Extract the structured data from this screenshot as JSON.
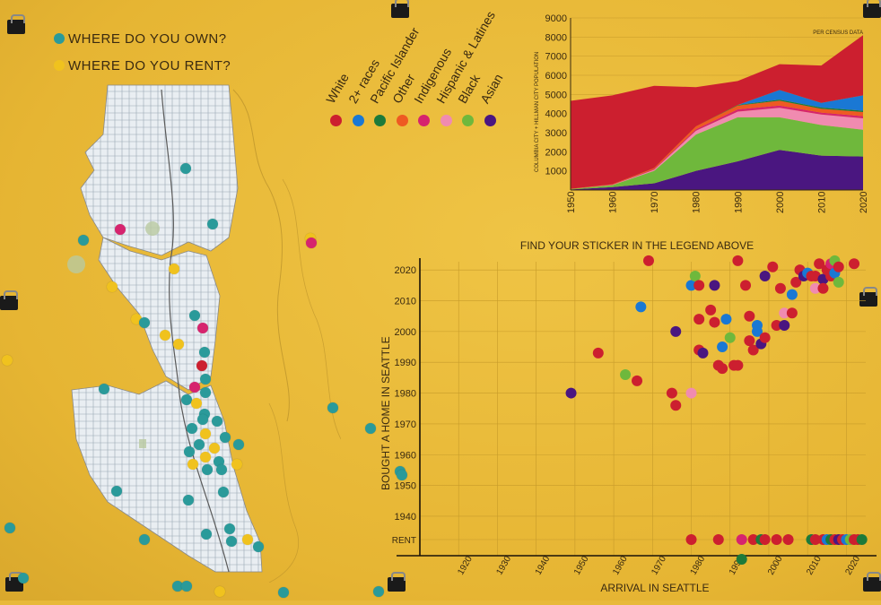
{
  "legend_key": {
    "own_label": "WHERE DO YOU OWN?",
    "rent_label": "WHERE DO YOU RENT?",
    "own_color": "#2a9a9a",
    "rent_color": "#f0c21e"
  },
  "ethnicity_legend": [
    {
      "label": "White",
      "color": "#cc1f2f"
    },
    {
      "label": "2+ races",
      "color": "#1a78d4"
    },
    {
      "label": "Pacific Islander",
      "color": "#1d7a3a"
    },
    {
      "label": "Other",
      "color": "#ee5a22"
    },
    {
      "label": "Indigenous",
      "color": "#d6246e"
    },
    {
      "label": "Hispanic & Latines",
      "color": "#f08bb0"
    },
    {
      "label": "Black",
      "color": "#6fb83c"
    },
    {
      "label": "Asian",
      "color": "#4a1680"
    }
  ],
  "area_chart": {
    "ylabel": "COLUMBIA CITY + HILLMAN CITY POPULATION",
    "note": "PER CENSUS DATA",
    "y_ticks": [
      "1000",
      "2000",
      "3000",
      "4000",
      "5000",
      "6000",
      "7000",
      "8000",
      "9000"
    ],
    "x_ticks": [
      "1950",
      "1960",
      "1970",
      "1980",
      "1990",
      "2000",
      "2010",
      "2020"
    ]
  },
  "chart_data": [
    {
      "type": "area",
      "title": "",
      "ylabel": "COLUMBIA CITY + HILLMAN CITY POPULATION",
      "xlabel": "",
      "annotation": "PER CENSUS DATA",
      "ylim": [
        0,
        9000
      ],
      "x": [
        1950,
        1960,
        1970,
        1980,
        1990,
        2000,
        2010,
        2020
      ],
      "series": [
        {
          "name": "Asian",
          "color": "#4a1680",
          "values": [
            30,
            150,
            350,
            1000,
            1500,
            2100,
            1800,
            1750
          ]
        },
        {
          "name": "Black",
          "color": "#6fb83c",
          "values": [
            20,
            100,
            650,
            1900,
            2300,
            1700,
            1600,
            1400
          ]
        },
        {
          "name": "Hispanic & Latines",
          "color": "#f08bb0",
          "values": [
            5,
            20,
            60,
            200,
            300,
            500,
            550,
            600
          ]
        },
        {
          "name": "Indigenous",
          "color": "#d6246e",
          "values": [
            5,
            15,
            40,
            80,
            120,
            120,
            100,
            110
          ]
        },
        {
          "name": "Other",
          "color": "#ee5a22",
          "values": [
            5,
            15,
            50,
            150,
            200,
            250,
            200,
            220
          ]
        },
        {
          "name": "Pacific Islander",
          "color": "#1d7a3a",
          "values": [
            0,
            0,
            0,
            0,
            30,
            60,
            60,
            70
          ]
        },
        {
          "name": "2+ races",
          "color": "#1a78d4",
          "values": [
            0,
            0,
            0,
            0,
            0,
            500,
            250,
            800
          ]
        },
        {
          "name": "White",
          "color": "#cc1f2f",
          "values": [
            4600,
            4650,
            4300,
            2050,
            1250,
            1350,
            1950,
            3150
          ]
        }
      ]
    },
    {
      "type": "scatter",
      "title": "FIND YOUR STICKER IN THE LEGEND ABOVE",
      "xlabel": "ARRIVAL IN SEATTLE",
      "ylabel": "BOUGHT A HOME  IN SEATTLE",
      "xlim": [
        1910,
        2025
      ],
      "ylim": [
        1933,
        2025
      ],
      "x_ticks": [
        "1920",
        "1930",
        "1940",
        "1950",
        "1960",
        "1970",
        "1980",
        "1990",
        "2000",
        "2010",
        "2020"
      ],
      "y_ticks": [
        "1940",
        "1950",
        "1960",
        "1970",
        "1980",
        "1990",
        "2000",
        "2010",
        "2020"
      ],
      "rent_label": "RENT",
      "points": [
        {
          "x": 1949,
          "y": 1980,
          "c": "#4a1680"
        },
        {
          "x": 1956,
          "y": 1993,
          "c": "#cc1f2f"
        },
        {
          "x": 1963,
          "y": 1986,
          "c": "#6fb83c"
        },
        {
          "x": 1966,
          "y": 1984,
          "c": "#cc1f2f"
        },
        {
          "x": 1967,
          "y": 2008,
          "c": "#1a78d4"
        },
        {
          "x": 1969,
          "y": 2023,
          "c": "#cc1f2f"
        },
        {
          "x": 1975,
          "y": 1980,
          "c": "#cc1f2f"
        },
        {
          "x": 1976,
          "y": 1976,
          "c": "#cc1f2f"
        },
        {
          "x": 1976,
          "y": 2000,
          "c": "#4a1680"
        },
        {
          "x": 1980,
          "y": 1980,
          "c": "#f08bb0"
        },
        {
          "x": 1980,
          "y": 2015,
          "c": "#1a78d4"
        },
        {
          "x": 1981,
          "y": 2018,
          "c": "#6fb83c"
        },
        {
          "x": 1982,
          "y": 2015,
          "c": "#cc1f2f"
        },
        {
          "x": 1982,
          "y": 2004,
          "c": "#cc1f2f"
        },
        {
          "x": 1982,
          "y": 1994,
          "c": "#cc1f2f"
        },
        {
          "x": 1983,
          "y": 1993,
          "c": "#4a1680"
        },
        {
          "x": 1985,
          "y": 2007,
          "c": "#cc1f2f"
        },
        {
          "x": 1986,
          "y": 2003,
          "c": "#cc1f2f"
        },
        {
          "x": 1986,
          "y": 2015,
          "c": "#4a1680"
        },
        {
          "x": 1987,
          "y": 1989,
          "c": "#cc1f2f"
        },
        {
          "x": 1988,
          "y": 1988,
          "c": "#cc1f2f"
        },
        {
          "x": 1988,
          "y": 1995,
          "c": "#1a78d4"
        },
        {
          "x": 1989,
          "y": 2004,
          "c": "#1a78d4"
        },
        {
          "x": 1990,
          "y": 1998,
          "c": "#6fb83c"
        },
        {
          "x": 1991,
          "y": 1989,
          "c": "#cc1f2f"
        },
        {
          "x": 1992,
          "y": 1989,
          "c": "#cc1f2f"
        },
        {
          "x": 1992,
          "y": 2023,
          "c": "#cc1f2f"
        },
        {
          "x": 1994,
          "y": 2015,
          "c": "#cc1f2f"
        },
        {
          "x": 1995,
          "y": 2005,
          "c": "#cc1f2f"
        },
        {
          "x": 1995,
          "y": 1997,
          "c": "#cc1f2f"
        },
        {
          "x": 1996,
          "y": 1994,
          "c": "#cc1f2f"
        },
        {
          "x": 1997,
          "y": 2002,
          "c": "#1a78d4"
        },
        {
          "x": 1997,
          "y": 2000,
          "c": "#1a78d4"
        },
        {
          "x": 1998,
          "y": 1996,
          "c": "#4a1680"
        },
        {
          "x": 1999,
          "y": 1998,
          "c": "#cc1f2f"
        },
        {
          "x": 1999,
          "y": 2018,
          "c": "#4a1680"
        },
        {
          "x": 2001,
          "y": 2021,
          "c": "#cc1f2f"
        },
        {
          "x": 2002,
          "y": 2002,
          "c": "#cc1f2f"
        },
        {
          "x": 2003,
          "y": 2014,
          "c": "#cc1f2f"
        },
        {
          "x": 2004,
          "y": 2006,
          "c": "#f08bb0"
        },
        {
          "x": 2004,
          "y": 2002,
          "c": "#4a1680"
        },
        {
          "x": 2006,
          "y": 2006,
          "c": "#cc1f2f"
        },
        {
          "x": 2006,
          "y": 2012,
          "c": "#1a78d4"
        },
        {
          "x": 2007,
          "y": 2016,
          "c": "#cc1f2f"
        },
        {
          "x": 2008,
          "y": 2020,
          "c": "#cc1f2f"
        },
        {
          "x": 2009,
          "y": 2018,
          "c": "#4a1680"
        },
        {
          "x": 2010,
          "y": 2019,
          "c": "#1a78d4"
        },
        {
          "x": 2011,
          "y": 2018,
          "c": "#cc1f2f"
        },
        {
          "x": 2012,
          "y": 2014,
          "c": "#f08bb0"
        },
        {
          "x": 2012,
          "y": 2018,
          "c": "#cc1f2f"
        },
        {
          "x": 2013,
          "y": 2022,
          "c": "#cc1f2f"
        },
        {
          "x": 2014,
          "y": 2017,
          "c": "#4a1680"
        },
        {
          "x": 2014,
          "y": 2014,
          "c": "#cc1f2f"
        },
        {
          "x": 2015,
          "y": 2020,
          "c": "#cc1f2f"
        },
        {
          "x": 2016,
          "y": 2022,
          "c": "#d6246e"
        },
        {
          "x": 2016,
          "y": 2018,
          "c": "#cc1f2f"
        },
        {
          "x": 2017,
          "y": 2023,
          "c": "#6fb83c"
        },
        {
          "x": 2017,
          "y": 2019,
          "c": "#1a78d4"
        },
        {
          "x": 2018,
          "y": 2021,
          "c": "#cc1f2f"
        },
        {
          "x": 2018,
          "y": 2016,
          "c": "#6fb83c"
        },
        {
          "x": 2022,
          "y": 2022,
          "c": "#cc1f2f"
        }
      ],
      "rent_points": [
        {
          "x": 1980,
          "c": "#cc1f2f"
        },
        {
          "x": 1987,
          "c": "#cc1f2f"
        },
        {
          "x": 1993,
          "c": "#d6246e"
        },
        {
          "x": 1996,
          "c": "#cc1f2f"
        },
        {
          "x": 1998,
          "c": "#1d7a3a"
        },
        {
          "x": 1999,
          "c": "#cc1f2f"
        },
        {
          "x": 2002,
          "c": "#cc1f2f"
        },
        {
          "x": 2005,
          "c": "#cc1f2f"
        },
        {
          "x": 2011,
          "c": "#1d7a3a"
        },
        {
          "x": 2012,
          "c": "#cc1f2f"
        },
        {
          "x": 2014,
          "c": "#cc1f2f"
        },
        {
          "x": 2015,
          "c": "#1a78d4"
        },
        {
          "x": 2016,
          "c": "#1d7a3a"
        },
        {
          "x": 2017,
          "c": "#cc1f2f"
        },
        {
          "x": 2018,
          "c": "#4a1680"
        },
        {
          "x": 2019,
          "c": "#cc1f2f"
        },
        {
          "x": 2020,
          "c": "#1a78d4"
        },
        {
          "x": 2021,
          "c": "#6fb83c"
        },
        {
          "x": 2022,
          "c": "#cc1f2f"
        },
        {
          "x": 2023,
          "c": "#cc1f2f"
        },
        {
          "x": 2024,
          "c": "#1d7a3a"
        }
      ],
      "below_axis_points": [
        {
          "x": 1993,
          "c": "#1d7a3a"
        }
      ]
    }
  ]
}
